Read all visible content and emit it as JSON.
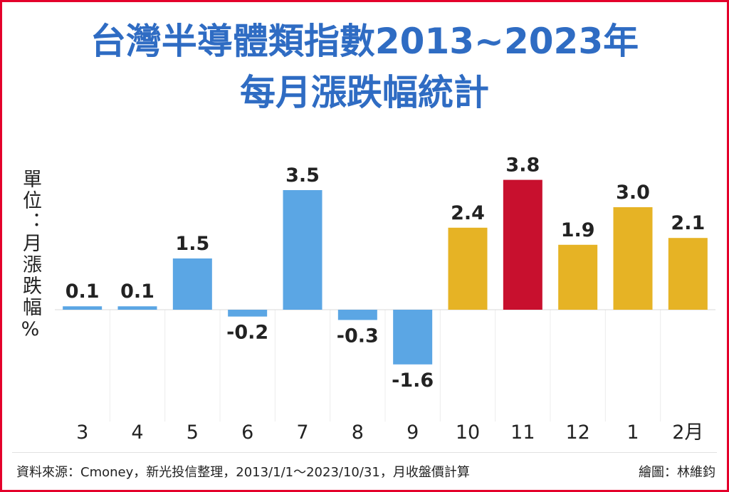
{
  "chart_data": {
    "type": "bar",
    "title": [
      "台灣半導體類指數2013~2023年",
      "每月漲跌幅統計"
    ],
    "ylabel": "單位：月漲跌幅%",
    "categories": [
      "3",
      "4",
      "5",
      "6",
      "7",
      "8",
      "9",
      "10",
      "11",
      "12",
      "1",
      "2月"
    ],
    "values": [
      0.1,
      0.1,
      1.5,
      -0.2,
      3.5,
      -0.3,
      -1.6,
      2.4,
      3.8,
      1.9,
      3.0,
      2.1
    ],
    "value_labels": [
      "0.1",
      "0.1",
      "1.5",
      "-0.2",
      "3.5",
      "-0.3",
      "-1.6",
      "2.4",
      "3.8",
      "1.9",
      "3.0",
      "2.1"
    ],
    "bar_colors": [
      "#5ba6e4",
      "#5ba6e4",
      "#5ba6e4",
      "#5ba6e4",
      "#5ba6e4",
      "#5ba6e4",
      "#5ba6e4",
      "#e6b325",
      "#c8102e",
      "#e6b325",
      "#e6b325",
      "#e6b325"
    ],
    "ylim": [
      -2,
      4
    ],
    "grid": true
  },
  "footer": {
    "source": "資料來源：Cmoney，新光投信整理，2013/1/1～2023/10/31，月收盤價計算",
    "credit": "繪圖：林維鈞"
  },
  "colors": {
    "title": "#2f6cc3",
    "border": "#e4002b",
    "text": "#222222"
  }
}
